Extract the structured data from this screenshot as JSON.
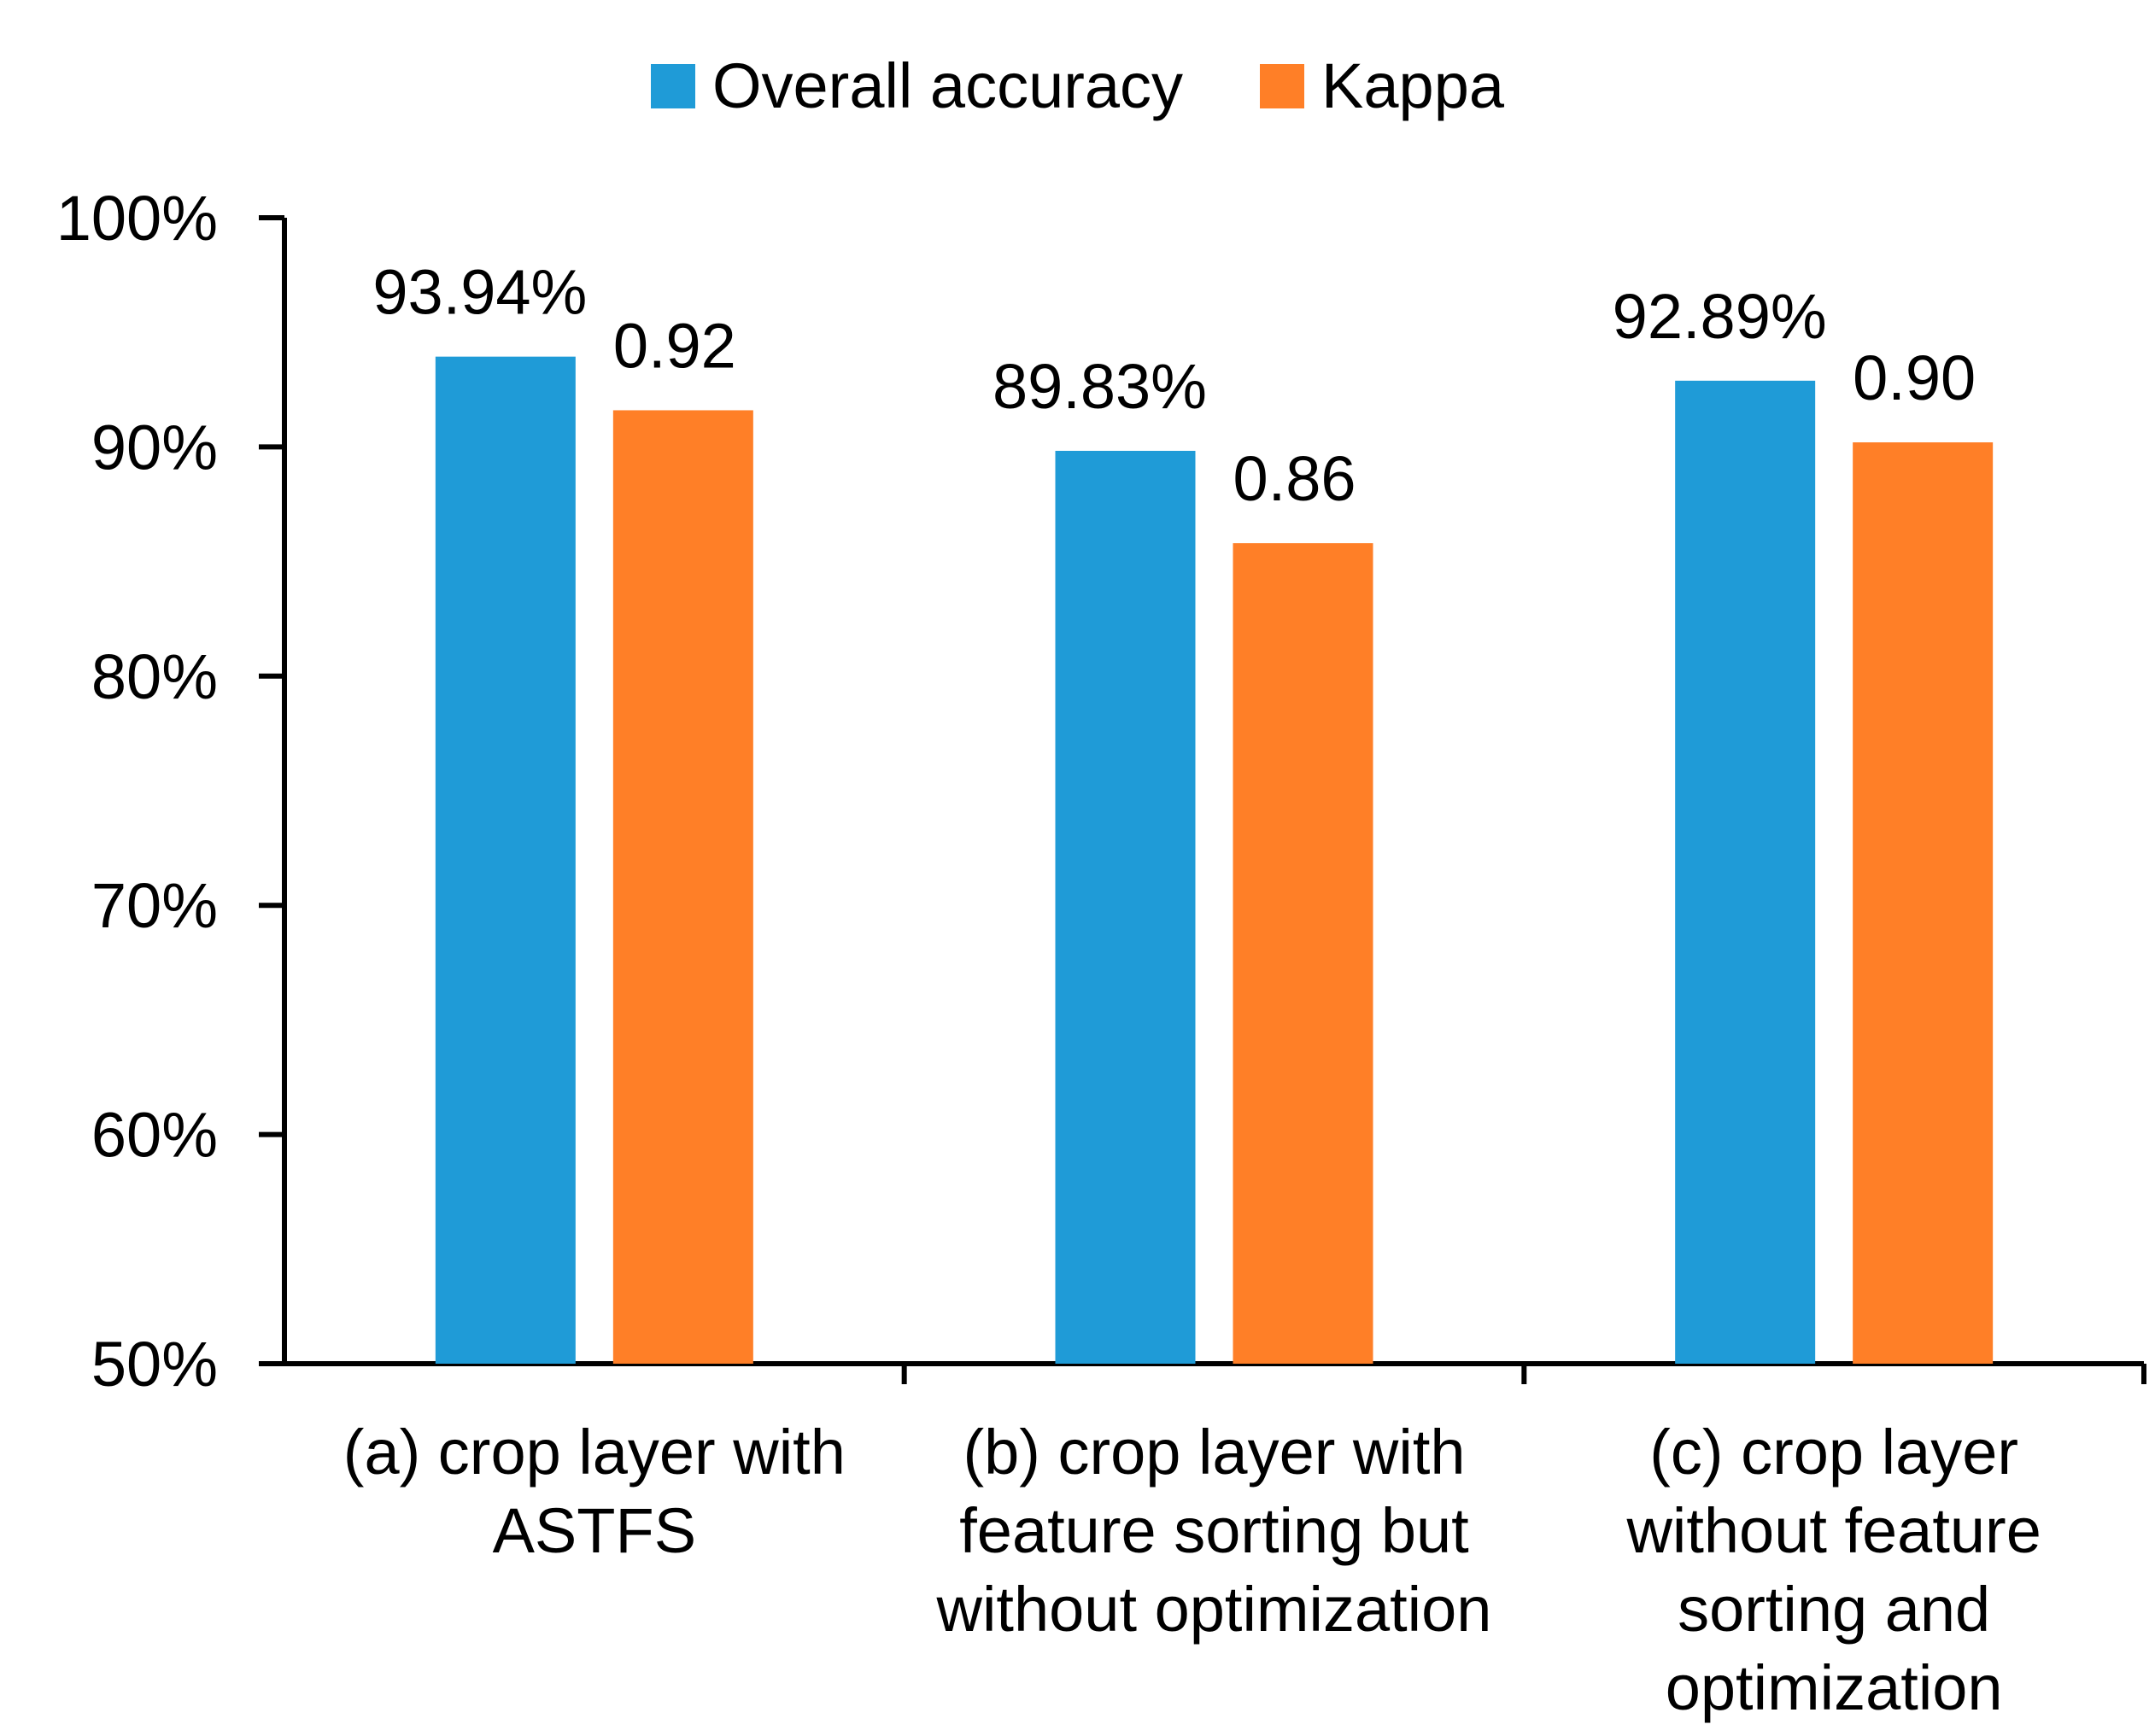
{
  "chart_data": {
    "type": "bar",
    "categories": [
      [
        "(a) crop layer with",
        "ASTFS"
      ],
      [
        "(b) crop layer with",
        "feature sorting but",
        "without optimization"
      ],
      [
        "(c) crop layer",
        "without feature",
        "sorting and",
        "optimization"
      ]
    ],
    "series": [
      {
        "name": "Overall accuracy",
        "color": "#1F9BD7",
        "values": [
          93.94,
          89.83,
          92.89
        ],
        "labels": [
          "93.94%",
          "89.83%",
          "92.89%"
        ]
      },
      {
        "name": "Kappa",
        "color": "#FF7F27",
        "values": [
          91.6,
          85.8,
          90.2
        ],
        "labels": [
          "0.92",
          "0.86",
          "0.90"
        ]
      }
    ],
    "ylim": [
      50,
      100
    ],
    "yticks": [
      50,
      60,
      70,
      80,
      90,
      100
    ],
    "ytick_labels": [
      "50%",
      "60%",
      "70%",
      "80%",
      "90%",
      "100%"
    ],
    "legend_position": "top-center",
    "grid": false
  }
}
